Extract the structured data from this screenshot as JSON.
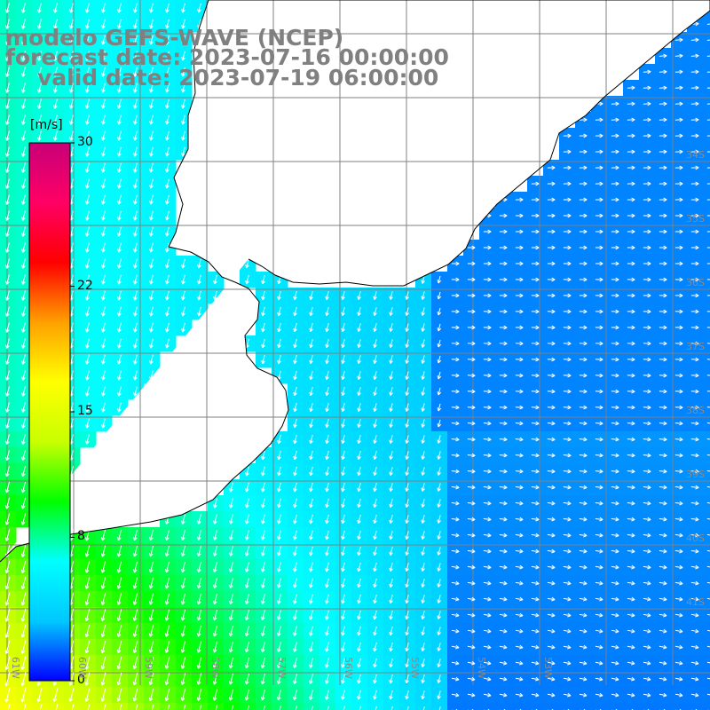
{
  "title": {
    "line1": "modelo GEFS-WAVE (NCEP)",
    "line2": "forecast date: 2023-07-16 00:00:00",
    "line3": "valid date: 2023-07-19 06:00:00"
  },
  "colorbar": {
    "units": "[m/s]",
    "ticks": [
      "30",
      "22",
      "15",
      "8",
      "0"
    ],
    "tick_values": [
      30,
      22,
      15,
      8,
      0
    ],
    "range": [
      0,
      30
    ],
    "colors": [
      "#0000ff",
      "#00c8ff",
      "#00ffff",
      "#00ff00",
      "#c8ff00",
      "#ffff00",
      "#ffa000",
      "#ff0000",
      "#ff0064",
      "#c80078"
    ]
  },
  "map": {
    "land_color": "#ffffff",
    "coast_color": "#000000",
    "grid_color": "#808080",
    "lat_labels": [
      "34S",
      "35S",
      "36S",
      "37S",
      "38S",
      "39S",
      "40S",
      "41S"
    ],
    "lon_labels": [
      "61W",
      "60W",
      "59W",
      "58W",
      "57W",
      "56W",
      "55W",
      "54W",
      "53W"
    ],
    "variable": "wind speed with direction arrows"
  }
}
